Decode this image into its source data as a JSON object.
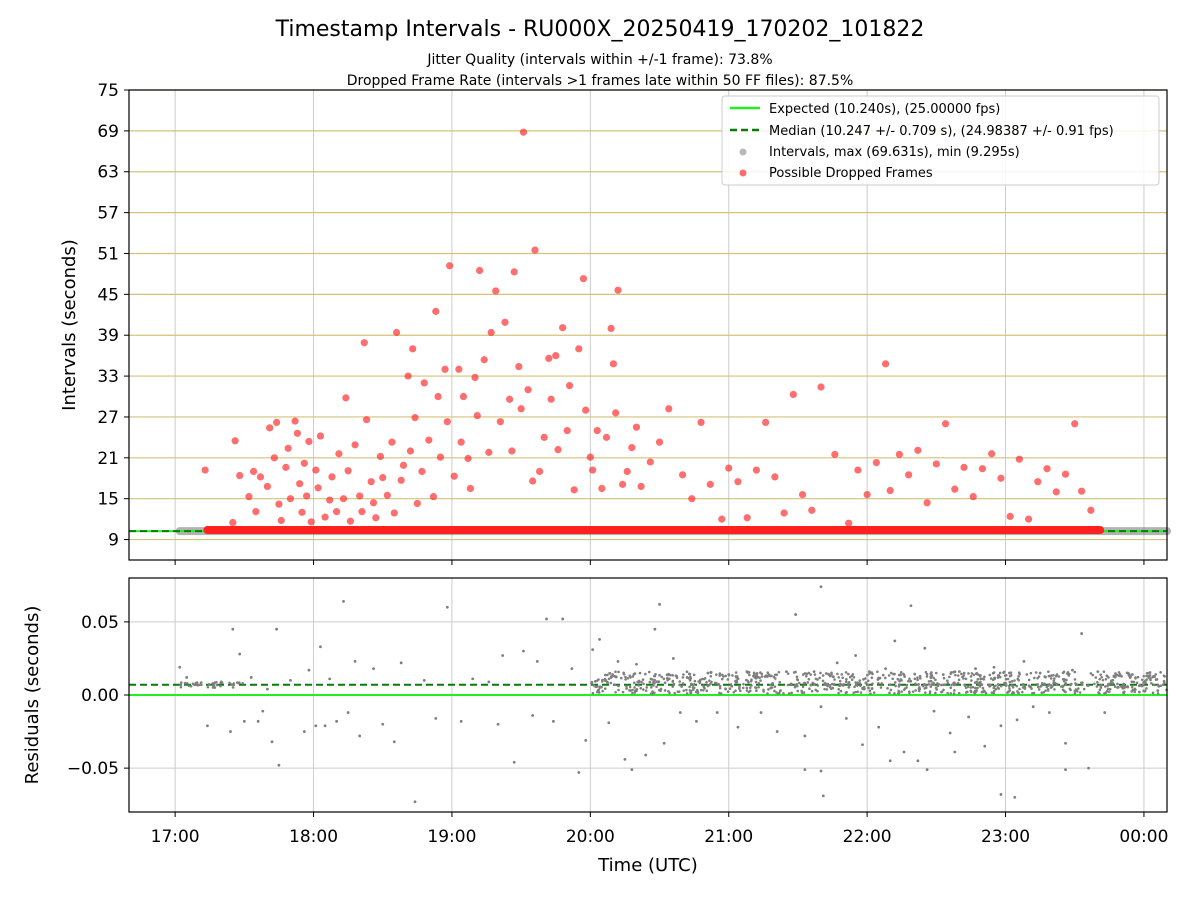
{
  "header": {
    "title": "Timestamp Intervals - RU000X_20250419_170202_101822",
    "subtitle1": "Jitter Quality (intervals within +/-1 frame): 73.8%",
    "subtitle2": "Dropped Frame Rate (intervals >1 frames late within 50 FF files): 87.5%"
  },
  "legend": {
    "expected": "Expected (10.240s), (25.00000 fps)",
    "median": "Median (10.247 +/- 0.709 s), (24.98387 +/- 0.91 fps)",
    "intervals": "Intervals, max (69.631s), min (9.295s)",
    "dropped": "Possible Dropped Frames"
  },
  "colors": {
    "expected": "#22ee22",
    "median": "#0a7a0a",
    "intervals": "#7f7f7f",
    "dropped": "#ff2020",
    "hgrid_top": "#d4c27a",
    "grid": "#cccccc"
  },
  "chart_data": [
    {
      "type": "scatter",
      "title": "Timestamp Intervals - RU000X_20250419_170202_101822",
      "xlabel": "",
      "ylabel": "Intervals (seconds)",
      "xlim": [
        "16:40",
        "00:10"
      ],
      "ylim": [
        6,
        75
      ],
      "yticks": [
        9,
        15,
        21,
        27,
        33,
        39,
        45,
        51,
        57,
        63,
        69,
        75
      ],
      "xticks": [
        "17:00",
        "18:00",
        "19:00",
        "20:00",
        "21:00",
        "22:00",
        "23:00",
        "00:00"
      ],
      "expected": 10.24,
      "median": 10.247,
      "baseline_series": {
        "name": "Intervals, max (69.631s), min (9.295s)",
        "from": "17:02",
        "to": "00:10",
        "value": 10.24
      },
      "dropped_band": {
        "name": "Possible Dropped Frames",
        "from": "17:14",
        "to": "23:41",
        "value": 10.4
      },
      "dropped_points": [
        [
          "17:13",
          19.2
        ],
        [
          "17:25",
          11.5
        ],
        [
          "17:26",
          23.5
        ],
        [
          "17:28",
          18.4
        ],
        [
          "17:32",
          15.3
        ],
        [
          "17:34",
          19.0
        ],
        [
          "17:35",
          13.1
        ],
        [
          "17:37",
          18.2
        ],
        [
          "17:40",
          16.8
        ],
        [
          "17:41",
          25.4
        ],
        [
          "17:43",
          21.0
        ],
        [
          "17:44",
          26.2
        ],
        [
          "17:45",
          14.2
        ],
        [
          "17:46",
          11.8
        ],
        [
          "17:48",
          19.6
        ],
        [
          "17:49",
          22.4
        ],
        [
          "17:50",
          15.0
        ],
        [
          "17:52",
          26.4
        ],
        [
          "17:53",
          24.6
        ],
        [
          "17:54",
          17.2
        ],
        [
          "17:55",
          13.0
        ],
        [
          "17:56",
          20.2
        ],
        [
          "17:57",
          15.4
        ],
        [
          "17:58",
          23.4
        ],
        [
          "17:59",
          11.6
        ],
        [
          "18:01",
          19.2
        ],
        [
          "18:02",
          16.6
        ],
        [
          "18:03",
          24.2
        ],
        [
          "18:05",
          12.3
        ],
        [
          "18:07",
          14.8
        ],
        [
          "18:08",
          18.2
        ],
        [
          "18:10",
          13.1
        ],
        [
          "18:11",
          21.6
        ],
        [
          "18:13",
          15.0
        ],
        [
          "18:14",
          29.8
        ],
        [
          "18:15",
          19.1
        ],
        [
          "18:16",
          11.7
        ],
        [
          "18:18",
          22.9
        ],
        [
          "18:20",
          15.4
        ],
        [
          "18:21",
          13.1
        ],
        [
          "18:22",
          37.9
        ],
        [
          "18:23",
          26.6
        ],
        [
          "18:25",
          17.5
        ],
        [
          "18:26",
          14.4
        ],
        [
          "18:27",
          12.2
        ],
        [
          "18:29",
          21.2
        ],
        [
          "18:30",
          18.1
        ],
        [
          "18:32",
          15.5
        ],
        [
          "18:34",
          23.3
        ],
        [
          "18:35",
          12.9
        ],
        [
          "18:36",
          39.4
        ],
        [
          "18:38",
          17.7
        ],
        [
          "18:39",
          19.9
        ],
        [
          "18:41",
          33.0
        ],
        [
          "18:42",
          22.0
        ],
        [
          "18:43",
          37.0
        ],
        [
          "18:44",
          26.9
        ],
        [
          "18:45",
          14.3
        ],
        [
          "18:47",
          19.0
        ],
        [
          "18:48",
          32.0
        ],
        [
          "18:50",
          23.6
        ],
        [
          "18:52",
          15.3
        ],
        [
          "18:53",
          42.5
        ],
        [
          "18:54",
          30.0
        ],
        [
          "18:55",
          21.1
        ],
        [
          "18:57",
          34.0
        ],
        [
          "18:58",
          26.3
        ],
        [
          "18:59",
          49.2
        ],
        [
          "19:01",
          18.3
        ],
        [
          "19:03",
          34.0
        ],
        [
          "19:04",
          23.3
        ],
        [
          "19:05",
          30.0
        ],
        [
          "19:07",
          20.9
        ],
        [
          "19:08",
          16.5
        ],
        [
          "19:10",
          32.8
        ],
        [
          "19:11",
          27.2
        ],
        [
          "19:12",
          48.5
        ],
        [
          "19:14",
          35.4
        ],
        [
          "19:16",
          21.8
        ],
        [
          "19:17",
          39.4
        ],
        [
          "19:19",
          45.5
        ],
        [
          "19:21",
          26.3
        ],
        [
          "19:23",
          40.9
        ],
        [
          "19:25",
          29.6
        ],
        [
          "19:26",
          22.0
        ],
        [
          "19:27",
          48.3
        ],
        [
          "19:29",
          34.4
        ],
        [
          "19:30",
          28.2
        ],
        [
          "19:31",
          68.8
        ],
        [
          "19:33",
          31.0
        ],
        [
          "19:35",
          17.6
        ],
        [
          "19:36",
          51.5
        ],
        [
          "19:38",
          19.0
        ],
        [
          "19:40",
          24.0
        ],
        [
          "19:42",
          35.6
        ],
        [
          "19:43",
          29.6
        ],
        [
          "19:45",
          36.0
        ],
        [
          "19:46",
          22.2
        ],
        [
          "19:48",
          40.1
        ],
        [
          "19:50",
          25.0
        ],
        [
          "19:51",
          31.6
        ],
        [
          "19:53",
          16.3
        ],
        [
          "19:55",
          37.0
        ],
        [
          "19:57",
          47.3
        ],
        [
          "19:58",
          28.0
        ],
        [
          "20:00",
          21.1
        ],
        [
          "20:01",
          19.2
        ],
        [
          "20:03",
          25.0
        ],
        [
          "20:05",
          16.5
        ],
        [
          "20:07",
          24.0
        ],
        [
          "20:09",
          40.0
        ],
        [
          "20:10",
          34.8
        ],
        [
          "20:11",
          27.6
        ],
        [
          "20:12",
          45.6
        ],
        [
          "20:14",
          17.1
        ],
        [
          "20:16",
          19.0
        ],
        [
          "20:18",
          22.5
        ],
        [
          "20:20",
          25.5
        ],
        [
          "20:22",
          16.8
        ],
        [
          "20:26",
          20.4
        ],
        [
          "20:30",
          23.3
        ],
        [
          "20:34",
          28.2
        ],
        [
          "20:40",
          18.5
        ],
        [
          "20:44",
          15.0
        ],
        [
          "20:48",
          26.2
        ],
        [
          "20:52",
          17.1
        ],
        [
          "20:57",
          12.0
        ],
        [
          "21:00",
          19.5
        ],
        [
          "21:04",
          17.5
        ],
        [
          "21:08",
          12.2
        ],
        [
          "21:12",
          19.2
        ],
        [
          "21:16",
          26.2
        ],
        [
          "21:20",
          18.2
        ],
        [
          "21:24",
          12.9
        ],
        [
          "21:28",
          30.3
        ],
        [
          "21:32",
          15.6
        ],
        [
          "21:36",
          13.3
        ],
        [
          "21:40",
          31.4
        ],
        [
          "21:46",
          21.5
        ],
        [
          "21:52",
          11.4
        ],
        [
          "21:56",
          19.2
        ],
        [
          "22:00",
          15.6
        ],
        [
          "22:04",
          20.3
        ],
        [
          "22:08",
          34.8
        ],
        [
          "22:10",
          16.2
        ],
        [
          "22:14",
          21.5
        ],
        [
          "22:18",
          18.5
        ],
        [
          "22:22",
          22.1
        ],
        [
          "22:26",
          14.4
        ],
        [
          "22:30",
          20.1
        ],
        [
          "22:34",
          26.0
        ],
        [
          "22:38",
          16.4
        ],
        [
          "22:42",
          19.6
        ],
        [
          "22:46",
          15.3
        ],
        [
          "22:50",
          19.4
        ],
        [
          "22:54",
          21.6
        ],
        [
          "22:58",
          18.0
        ],
        [
          "23:02",
          12.4
        ],
        [
          "23:06",
          20.8
        ],
        [
          "23:10",
          12.0
        ],
        [
          "23:14",
          17.5
        ],
        [
          "23:18",
          19.4
        ],
        [
          "23:22",
          16.0
        ],
        [
          "23:26",
          18.6
        ],
        [
          "23:30",
          26.0
        ],
        [
          "23:33",
          16.1
        ],
        [
          "23:37",
          13.3
        ]
      ]
    },
    {
      "type": "scatter",
      "title": "",
      "xlabel": "Time (UTC)",
      "ylabel": "Residuals (seconds)",
      "xlim": [
        "16:40",
        "00:10"
      ],
      "ylim": [
        -0.08,
        0.08
      ],
      "yticks": [
        -0.05,
        0.0,
        0.05
      ],
      "ytick_labels": [
        "−0.05",
        "0.00",
        "0.05"
      ],
      "xticks": [
        "17:00",
        "18:00",
        "19:00",
        "20:00",
        "21:00",
        "22:00",
        "23:00",
        "00:00"
      ],
      "expected": 0.0,
      "median": 0.007,
      "points": [
        [
          "17:02",
          0.019
        ],
        [
          "17:05",
          0.012
        ],
        [
          "17:09",
          0.008
        ],
        [
          "17:14",
          -0.021
        ],
        [
          "17:20",
          0.009
        ],
        [
          "17:24",
          -0.025
        ],
        [
          "17:25",
          0.045
        ],
        [
          "17:28",
          0.028
        ],
        [
          "17:30",
          -0.018
        ],
        [
          "17:33",
          0.012
        ],
        [
          "17:36",
          -0.018
        ],
        [
          "17:38",
          -0.011
        ],
        [
          "17:40",
          0.004
        ],
        [
          "17:42",
          -0.032
        ],
        [
          "17:44",
          0.045
        ],
        [
          "17:45",
          -0.048
        ],
        [
          "17:50",
          0.01
        ],
        [
          "17:56",
          -0.025
        ],
        [
          "17:58",
          0.017
        ],
        [
          "18:01",
          -0.021
        ],
        [
          "18:03",
          0.033
        ],
        [
          "18:05",
          -0.021
        ],
        [
          "18:07",
          0.011
        ],
        [
          "18:10",
          -0.018
        ],
        [
          "18:13",
          0.064
        ],
        [
          "18:15",
          -0.012
        ],
        [
          "18:18",
          0.023
        ],
        [
          "18:20",
          -0.028
        ],
        [
          "18:26",
          0.018
        ],
        [
          "18:30",
          -0.02
        ],
        [
          "18:35",
          -0.032
        ],
        [
          "18:38",
          0.022
        ],
        [
          "18:44",
          -0.073
        ],
        [
          "18:48",
          0.01
        ],
        [
          "18:53",
          -0.016
        ],
        [
          "18:58",
          0.06
        ],
        [
          "19:04",
          -0.018
        ],
        [
          "19:09",
          0.011
        ],
        [
          "19:16",
          0.009
        ],
        [
          "19:20",
          -0.02
        ],
        [
          "19:22",
          0.027
        ],
        [
          "19:27",
          -0.046
        ],
        [
          "19:31",
          0.03
        ],
        [
          "19:35",
          -0.014
        ],
        [
          "19:37",
          0.023
        ],
        [
          "19:41",
          0.052
        ],
        [
          "19:44",
          -0.018
        ],
        [
          "19:48",
          0.052
        ],
        [
          "19:52",
          0.018
        ],
        [
          "19:55",
          -0.053
        ],
        [
          "19:58",
          -0.031
        ],
        [
          "20:01",
          0.031
        ],
        [
          "20:04",
          0.038
        ],
        [
          "20:08",
          -0.019
        ],
        [
          "20:12",
          0.023
        ],
        [
          "20:15",
          -0.044
        ],
        [
          "20:20",
          0.021
        ],
        [
          "20:24",
          -0.041
        ],
        [
          "20:28",
          0.045
        ],
        [
          "20:30",
          0.062
        ],
        [
          "20:32",
          -0.033
        ],
        [
          "20:36",
          0.025
        ],
        [
          "20:39",
          -0.012
        ],
        [
          "20:42",
          0.012
        ],
        [
          "20:46",
          -0.018
        ],
        [
          "20:51",
          0.015
        ],
        [
          "20:55",
          -0.012
        ],
        [
          "21:00",
          0.014
        ],
        [
          "21:04",
          -0.022
        ],
        [
          "21:08",
          0.016
        ],
        [
          "21:12",
          0.003
        ],
        [
          "21:14",
          -0.012
        ],
        [
          "21:18",
          0.013
        ],
        [
          "21:21",
          -0.025
        ],
        [
          "21:25",
          0.016
        ],
        [
          "21:29",
          0.055
        ],
        [
          "21:33",
          -0.028
        ],
        [
          "21:37",
          0.016
        ],
        [
          "21:40",
          -0.008
        ],
        [
          "21:44",
          0.013
        ],
        [
          "21:47",
          0.022
        ],
        [
          "21:51",
          -0.016
        ],
        [
          "21:55",
          0.027
        ],
        [
          "21:58",
          -0.034
        ],
        [
          "22:01",
          0.016
        ],
        [
          "22:05",
          -0.022
        ],
        [
          "22:08",
          0.018
        ],
        [
          "22:12",
          0.037
        ],
        [
          "22:16",
          -0.039
        ],
        [
          "22:19",
          0.061
        ],
        [
          "22:22",
          -0.045
        ],
        [
          "22:25",
          0.032
        ],
        [
          "22:29",
          -0.011
        ],
        [
          "22:33",
          0.014
        ],
        [
          "22:36",
          -0.026
        ],
        [
          "22:40",
          0.016
        ],
        [
          "22:44",
          -0.015
        ],
        [
          "22:47",
          0.018
        ],
        [
          "22:51",
          -0.035
        ],
        [
          "22:55",
          0.019
        ],
        [
          "22:58",
          -0.021
        ],
        [
          "23:02",
          0.013
        ],
        [
          "23:05",
          -0.017
        ],
        [
          "23:08",
          0.023
        ],
        [
          "23:12",
          -0.008
        ],
        [
          "23:15",
          0.015
        ],
        [
          "23:19",
          -0.012
        ],
        [
          "23:22",
          0.013
        ],
        [
          "23:26",
          -0.033
        ],
        [
          "23:29",
          0.017
        ],
        [
          "23:33",
          0.042
        ],
        [
          "23:36",
          -0.05
        ],
        [
          "23:40",
          0.016
        ],
        [
          "23:43",
          -0.012
        ],
        [
          "23:47",
          0.013
        ],
        [
          "23:51",
          0.005
        ],
        [
          "23:55",
          0.014
        ],
        [
          "23:58",
          0.002
        ],
        [
          "00:02",
          0.013
        ],
        [
          "00:06",
          0.003
        ]
      ],
      "dense_band": {
        "from": "20:00",
        "to": "00:10",
        "low": 0.001,
        "high": 0.016
      },
      "low_outliers": [
        [
          "20:18",
          -0.051
        ],
        [
          "21:33",
          -0.051
        ],
        [
          "22:26",
          -0.051
        ],
        [
          "23:26",
          -0.051
        ]
      ],
      "extra_outliers": [
        [
          "21:40",
          -0.052
        ],
        [
          "21:41",
          -0.069
        ],
        [
          "21:40",
          0.074
        ],
        [
          "22:38",
          -0.039
        ],
        [
          "22:58",
          -0.068
        ],
        [
          "23:04",
          -0.07
        ],
        [
          "22:10",
          -0.045
        ]
      ]
    }
  ]
}
